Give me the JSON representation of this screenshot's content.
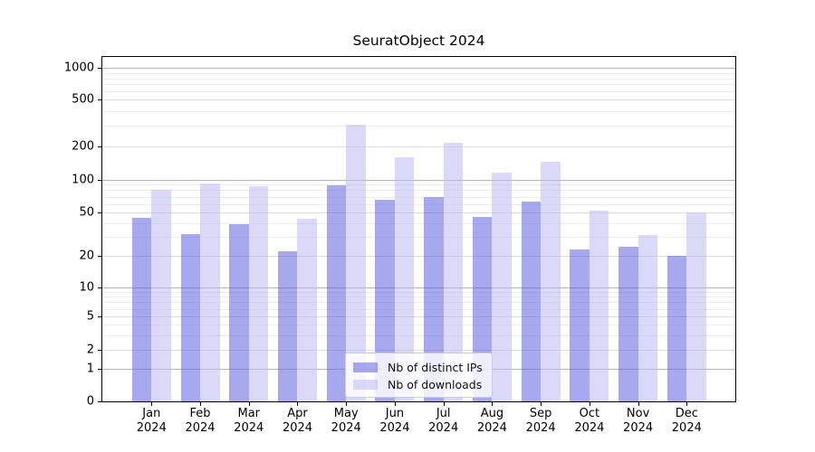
{
  "title": "SeuratObject 2024",
  "chart_data": {
    "type": "bar",
    "title": "SeuratObject 2024",
    "categories": [
      "Jan 2024",
      "Feb 2024",
      "Mar 2024",
      "Apr 2024",
      "May 2024",
      "Jun 2024",
      "Jul 2024",
      "Aug 2024",
      "Sep 2024",
      "Oct 2024",
      "Nov 2024",
      "Dec 2024"
    ],
    "series": [
      {
        "name": "Nb of distinct IPs",
        "color": "rgba(97,97,224,0.55)",
        "values": [
          45,
          32,
          39,
          22,
          89,
          66,
          70,
          46,
          63,
          23,
          24,
          20
        ]
      },
      {
        "name": "Nb of downloads",
        "color": "rgba(188,188,242,0.55)",
        "values": [
          80,
          92,
          87,
          44,
          305,
          158,
          215,
          115,
          144,
          52,
          31,
          50
        ]
      }
    ],
    "y_axis": {
      "scale": "asinh-like (log above 1, linear 0 to 1)",
      "ticks": [
        0,
        1,
        2,
        5,
        10,
        20,
        50,
        100,
        200,
        500,
        1000
      ],
      "tick_labels": [
        "0",
        "1",
        "2",
        "5",
        "10",
        "20",
        "50",
        "100",
        "200",
        "500",
        "1000"
      ],
      "minor_gridlines": [
        3,
        4,
        6,
        7,
        8,
        9,
        30,
        40,
        60,
        70,
        80,
        90,
        300,
        400,
        600,
        700,
        800,
        900
      ],
      "decade_gridlines": [
        1,
        10,
        100,
        1000
      ],
      "scale_anchors": [
        [
          0,
          0
        ],
        [
          1,
          0.0945
        ],
        [
          2,
          0.1496
        ],
        [
          5,
          0.2467
        ],
        [
          10,
          0.3307
        ],
        [
          20,
          0.4226
        ],
        [
          50,
          0.5478
        ],
        [
          100,
          0.6438
        ],
        [
          200,
          0.7402
        ],
        [
          500,
          0.8758
        ],
        [
          1000,
          0.9677
        ]
      ]
    },
    "x_axis": {
      "tick_label_lines": 2
    },
    "legend": {
      "items": [
        "Nb of distinct IPs",
        "Nb of downloads"
      ],
      "position": "lower center"
    },
    "grid": true
  },
  "colors": {
    "grid_minor": "#ececec",
    "grid_major": "#dcdcdc",
    "grid_decade": "#b3b3b3",
    "spine": "#000000"
  }
}
